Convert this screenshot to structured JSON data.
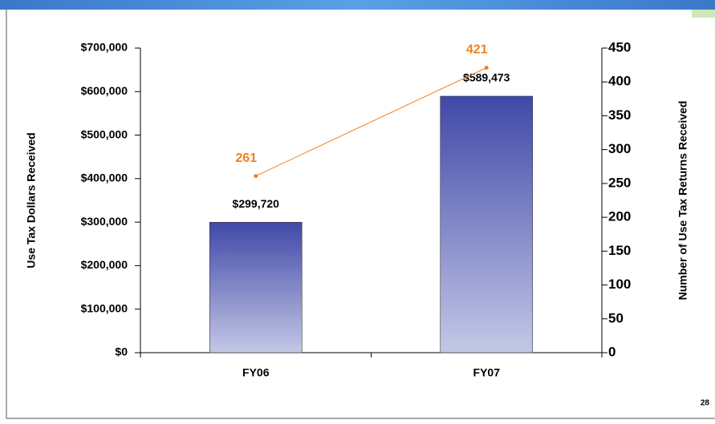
{
  "chart_data": {
    "type": "bar",
    "categories": [
      "FY06",
      "FY07"
    ],
    "series": [
      {
        "type": "bar",
        "color": "#4048a8",
        "values": [
          299720,
          589473
        ],
        "value_labels": [
          "$299,720",
          "$589,473"
        ]
      },
      {
        "type": "line",
        "color": "#f08020",
        "values": [
          261,
          421
        ],
        "axis": "y2"
      }
    ],
    "ylabel": "Use Tax Dollars Received",
    "y2label": "Number of Use Tax Returns Received",
    "ylim": [
      0,
      700000
    ],
    "yticks": [
      {
        "value": 0,
        "label": "$0"
      },
      {
        "value": 100000,
        "label": "$100,000"
      },
      {
        "value": 200000,
        "label": "$200,000"
      },
      {
        "value": 300000,
        "label": "$300,000"
      },
      {
        "value": 400000,
        "label": "$400,000"
      },
      {
        "value": 500000,
        "label": "$500,000"
      },
      {
        "value": 600000,
        "label": "$600,000"
      },
      {
        "value": 700000,
        "label": "$700,000"
      }
    ],
    "y2lim": [
      0,
      450
    ],
    "y2ticks": [
      0,
      50,
      100,
      150,
      200,
      250,
      300,
      350,
      400,
      450
    ],
    "grid": false
  },
  "page_number": "28"
}
